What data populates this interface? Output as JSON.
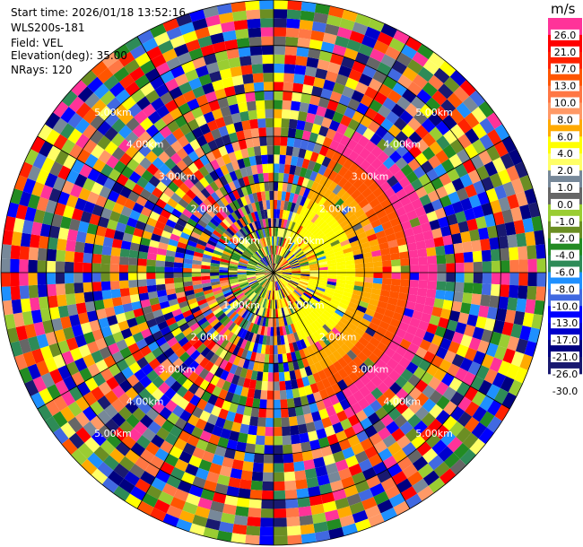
{
  "info": {
    "start_time": "Start time: 2026/01/18 13:52:16",
    "station": "WLS200s-181",
    "field": "Field: VEL",
    "elevation": "Elevation(deg): 35.00",
    "nrays": "NRays: 120"
  },
  "chart_data": {
    "type": "heatmap",
    "projection": "polar-ppi",
    "field": "VEL",
    "units": "m/s",
    "n_rays": 120,
    "n_gates": 30,
    "max_range_km": 6.0,
    "range_rings_km": [
      1,
      2,
      3,
      4,
      5,
      6
    ],
    "range_ring_labels": [
      "1.00km",
      "2.00km",
      "3.00km",
      "4.00km",
      "5.00km",
      "6.00km"
    ],
    "spokes": 12,
    "colorbar": {
      "unit": "m/s",
      "bins": [
        {
          "label": "26.0",
          "color": "#ff3399"
        },
        {
          "label": "21.0",
          "color": "#ff0000"
        },
        {
          "label": "17.0",
          "color": "#ff2200"
        },
        {
          "label": "13.0",
          "color": "#ff5500"
        },
        {
          "label": "10.0",
          "color": "#ff7744"
        },
        {
          "label": "8.0",
          "color": "#ff9966"
        },
        {
          "label": "6.0",
          "color": "#ffaa00"
        },
        {
          "label": "4.0",
          "color": "#ffff00"
        },
        {
          "label": "2.0",
          "color": "#ffff66"
        },
        {
          "label": "1.0",
          "color": "#778899"
        },
        {
          "label": "0.0",
          "color": "#666666"
        },
        {
          "label": "-1.0",
          "color": "#9acd32"
        },
        {
          "label": "-2.0",
          "color": "#6b8e23"
        },
        {
          "label": "-4.0",
          "color": "#228b22"
        },
        {
          "label": "-6.0",
          "color": "#2e8b57"
        },
        {
          "label": "-8.0",
          "color": "#1e90ff"
        },
        {
          "label": "-10.0",
          "color": "#4169e1"
        },
        {
          "label": "-13.0",
          "color": "#0000ff"
        },
        {
          "label": "-17.0",
          "color": "#0000cd"
        },
        {
          "label": "-21.0",
          "color": "#000080"
        },
        {
          "label": "-26.0",
          "color": "#191970"
        },
        {
          "label": "-30.0",
          "color": ""
        }
      ]
    },
    "clean_sector": {
      "from_deg": 25,
      "to_deg": 160,
      "max_range_km": 3.3
    }
  }
}
